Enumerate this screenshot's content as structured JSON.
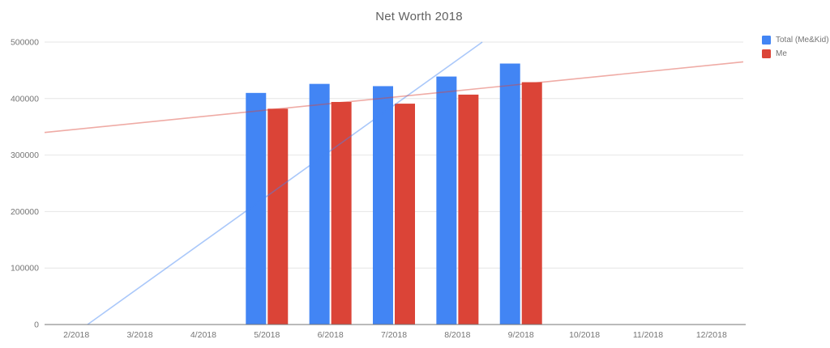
{
  "page": {
    "background": "#ffffff"
  },
  "chart_data": {
    "type": "bar",
    "title": "Net Worth 2018",
    "title_color": "#616161",
    "xlabel": "",
    "ylabel": "",
    "categories": [
      "2/2018",
      "3/2018",
      "4/2018",
      "5/2018",
      "6/2018",
      "7/2018",
      "8/2018",
      "9/2018",
      "10/2018",
      "11/2018",
      "12/2018"
    ],
    "series": [
      {
        "name": "Total (Me&Kid)",
        "color": "#4285F4",
        "values": [
          null,
          null,
          null,
          410000,
          426000,
          422000,
          439000,
          462000,
          null,
          null,
          null
        ]
      },
      {
        "name": "Me",
        "color": "#DB4437",
        "values": [
          null,
          null,
          null,
          382000,
          394000,
          391000,
          407000,
          429000,
          null,
          null,
          null
        ]
      }
    ],
    "trendlines": [
      {
        "series": "Total (Me&Kid)",
        "color": "rgba(66,133,244,0.45)",
        "points": [
          {
            "x_frac": 0.0615,
            "value": 0
          },
          {
            "x_frac": 0.6265,
            "value": 500000
          }
        ]
      },
      {
        "series": "Me",
        "color": "rgba(219,68,55,0.45)",
        "points": [
          {
            "x_frac": 0.0,
            "value": 340000
          },
          {
            "x_frac": 1.0,
            "value": 465000
          }
        ]
      }
    ],
    "y_ticks": [
      "0",
      "100000",
      "200000",
      "300000",
      "400000",
      "500000"
    ],
    "y_tick_values": [
      0,
      100000,
      200000,
      300000,
      400000,
      500000
    ],
    "ylim": [
      0,
      500000
    ],
    "grid": true,
    "legend_position": "right",
    "axis_text_color": "#757575",
    "gridline_color": "#e6e6e6",
    "baseline_color": "#757575"
  }
}
